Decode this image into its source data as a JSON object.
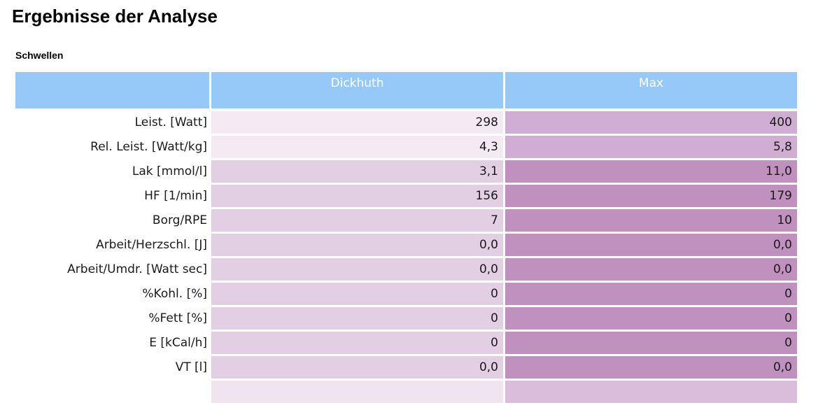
{
  "page": {
    "title": "Ergebnisse der Analyse",
    "section_title": "Schwellen"
  },
  "table": {
    "columns": [
      "",
      "Dickhuth",
      "Max"
    ],
    "rows": [
      {
        "label": "Leist. [Watt]",
        "dickhuth": "298",
        "max": "400"
      },
      {
        "label": "Rel. Leist. [Watt/kg]",
        "dickhuth": "4,3",
        "max": "5,8"
      },
      {
        "label": "Lak [mmol/l]",
        "dickhuth": "3,1",
        "max": "11,0"
      },
      {
        "label": "HF [1/min]",
        "dickhuth": "156",
        "max": "179"
      },
      {
        "label": "Borg/RPE",
        "dickhuth": "7",
        "max": "10"
      },
      {
        "label": "Arbeit/Herzschl. [J]",
        "dickhuth": "0,0",
        "max": "0,0"
      },
      {
        "label": "Arbeit/Umdr. [Watt sec]",
        "dickhuth": "0,0",
        "max": "0,0"
      },
      {
        "label": "%Kohl. [%]",
        "dickhuth": "0",
        "max": "0"
      },
      {
        "label": "%Fett [%]",
        "dickhuth": "0",
        "max": "0"
      },
      {
        "label": "E [kCal/h]",
        "dickhuth": "0",
        "max": "0"
      },
      {
        "label": "VT [l]",
        "dickhuth": "0,0",
        "max": "0,0"
      }
    ],
    "colors": {
      "header_bg": "#96c9f8",
      "header_text": "#ffffff",
      "dickhuth_light_row_bg": "#f5eaf4",
      "dickhuth_dark_row_bg": "#e3cfe4",
      "max_light_row_bg": "#d0add2",
      "max_dark_row_bg": "#c091be",
      "body_text": "#1a1a1a",
      "page_bg": "#ffffff"
    }
  }
}
